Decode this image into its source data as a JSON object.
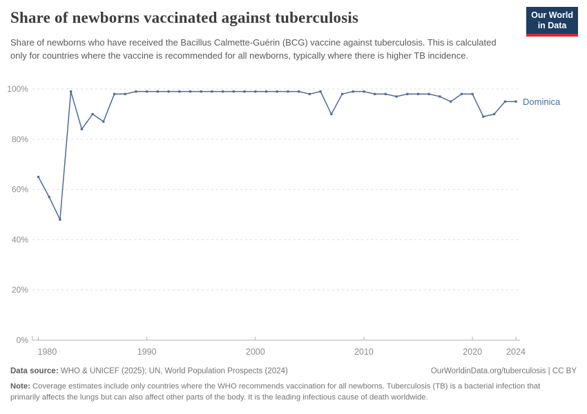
{
  "header": {
    "title": "Share of newborns vaccinated against tuberculosis",
    "subtitle": "Share of newborns who have received the Bacillus Calmette-Guérin (BCG) vaccine against tuberculosis. This is calculated only for countries where the vaccine is recommended for all newborns, typically where there is higher TB incidence."
  },
  "logo": {
    "line1": "Our World",
    "line2": "in Data",
    "bg_color": "#1d3d63",
    "bar_color": "#d42b2b"
  },
  "chart_data": {
    "type": "line",
    "title": "Share of newborns vaccinated against tuberculosis",
    "xlabel": "",
    "ylabel": "",
    "xlim": [
      1980,
      2024
    ],
    "ylim": [
      0,
      100
    ],
    "grid": "horizontal-dashed",
    "legend_position": "end-of-line-label",
    "x_ticks": [
      1980,
      1990,
      2000,
      2010,
      2020,
      2024
    ],
    "y_ticks": [
      "0%",
      "20%",
      "40%",
      "60%",
      "80%",
      "100%"
    ],
    "y_tick_values": [
      0,
      20,
      40,
      60,
      80,
      100
    ],
    "series": [
      {
        "name": "Dominica",
        "color": "#4c6a9c",
        "x": [
          1980,
          1981,
          1982,
          1983,
          1984,
          1985,
          1986,
          1987,
          1988,
          1989,
          1990,
          1991,
          1992,
          1993,
          1994,
          1995,
          1996,
          1997,
          1998,
          1999,
          2000,
          2001,
          2002,
          2003,
          2004,
          2005,
          2006,
          2007,
          2008,
          2009,
          2010,
          2011,
          2012,
          2013,
          2014,
          2015,
          2016,
          2017,
          2018,
          2019,
          2020,
          2021,
          2022,
          2023,
          2024
        ],
        "values": [
          65,
          57,
          48,
          99,
          84,
          90,
          87,
          98,
          98,
          99,
          99,
          99,
          99,
          99,
          99,
          99,
          99,
          99,
          99,
          99,
          99,
          99,
          99,
          99,
          99,
          98,
          99,
          90,
          98,
          99,
          99,
          98,
          98,
          97,
          98,
          98,
          98,
          97,
          95,
          98,
          98,
          89,
          90,
          95,
          95
        ]
      }
    ],
    "colors": {
      "grid": "#dddddd",
      "axis": "#b3b3b3",
      "tick_label": "#8c8c8c"
    }
  },
  "footer": {
    "datasource_label": "Data source:",
    "datasource_text": " WHO & UNICEF (2025); UN, World Population Prospects (2024)",
    "link_text": "OurWorldinData.org/tuberculosis | CC BY",
    "note_label": "Note:",
    "note_text": " Coverage estimates include only countries where the WHO recommends vaccination for all newborns. Tuberculosis (TB) is a bacterial infection that primarily affects the lungs but can also affect other parts of the body. It is the leading infectious cause of death worldwide."
  }
}
